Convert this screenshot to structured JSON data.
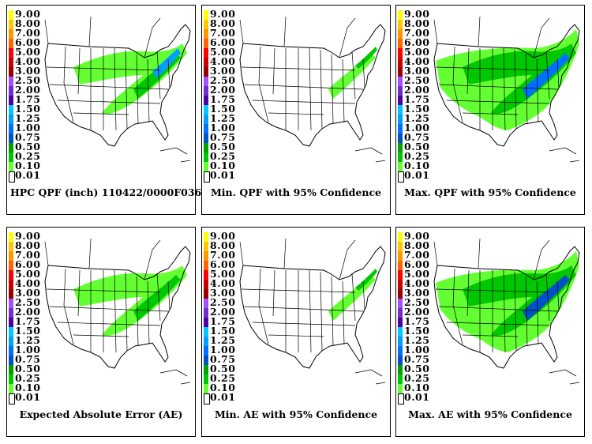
{
  "legend": {
    "levels": [
      "9.00",
      "8.00",
      "7.00",
      "6.00",
      "5.00",
      "4.00",
      "3.00",
      "2.50",
      "2.00",
      "1.75",
      "1.50",
      "1.25",
      "1.00",
      "0.75",
      "0.50",
      "0.25",
      "0.10",
      "0.01"
    ],
    "colors": [
      "#ffff00",
      "#ffc800",
      "#ff9600",
      "#ff6400",
      "#ff0000",
      "#c80000",
      "#960000",
      "#a050ff",
      "#7030c8",
      "#5000a0",
      "#00c8ff",
      "#00a0ff",
      "#0070ff",
      "#0050c8",
      "#00a000",
      "#00c800",
      "#64ff32",
      "#ffffff"
    ]
  },
  "panels": [
    {
      "id": "hpc-qpf",
      "title": "HPC QPF (inch) 110422/0000F036",
      "intensity": "medium"
    },
    {
      "id": "min-qpf",
      "title": "Min. QPF with 95% Confidence",
      "intensity": "low"
    },
    {
      "id": "max-qpf",
      "title": "Max. QPF with 95% Confidence",
      "intensity": "high"
    },
    {
      "id": "expected-ae",
      "title": "Expected Absolute Error (AE)",
      "intensity": "medium-ae"
    },
    {
      "id": "min-ae",
      "title": "Min. AE with 95% Confidence",
      "intensity": "low-ae"
    },
    {
      "id": "max-ae",
      "title": "Max. AE with 95% Confidence",
      "intensity": "high-ae"
    }
  ]
}
